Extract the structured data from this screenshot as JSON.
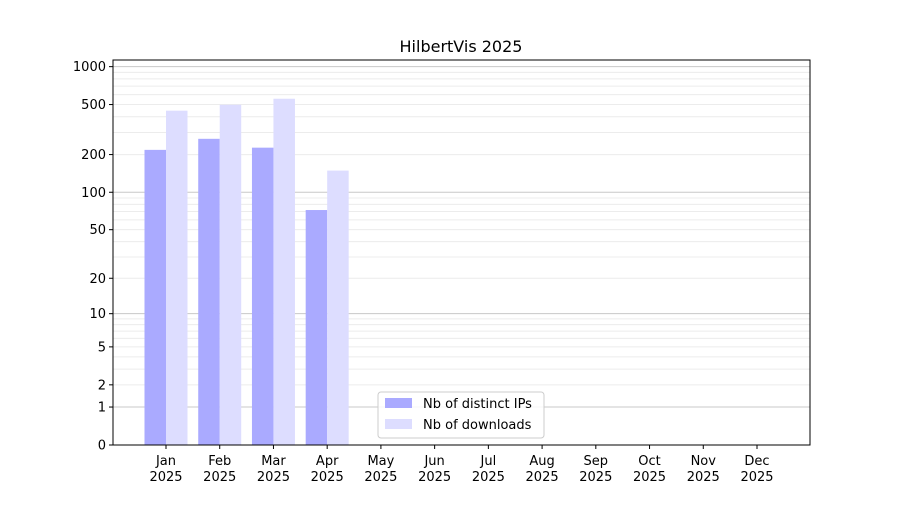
{
  "chart_data": {
    "type": "bar",
    "title": "HilbertVis 2025",
    "xlabel": "",
    "ylabel": "",
    "yscale": "symlog (log10(1+y))",
    "ylim": [
      0,
      1000
    ],
    "yticks": [
      0,
      1,
      2,
      5,
      10,
      20,
      50,
      100,
      200,
      500,
      1000
    ],
    "categories": [
      "Jan\n2025",
      "Feb\n2025",
      "Mar\n2025",
      "Apr\n2025",
      "May\n2025",
      "Jun\n2025",
      "Jul\n2025",
      "Aug\n2025",
      "Sep\n2025",
      "Oct\n2025",
      "Nov\n2025",
      "Dec\n2025"
    ],
    "series": [
      {
        "name": "Nb of distinct IPs",
        "color": "#aaaaff",
        "values": [
          218,
          267,
          227,
          72,
          null,
          null,
          null,
          null,
          null,
          null,
          null,
          null
        ]
      },
      {
        "name": "Nb of downloads",
        "color": "#ddddff",
        "values": [
          447,
          498,
          556,
          149,
          null,
          null,
          null,
          null,
          null,
          null,
          null,
          null
        ]
      }
    ],
    "grid": true,
    "legend": "bottom-center"
  }
}
